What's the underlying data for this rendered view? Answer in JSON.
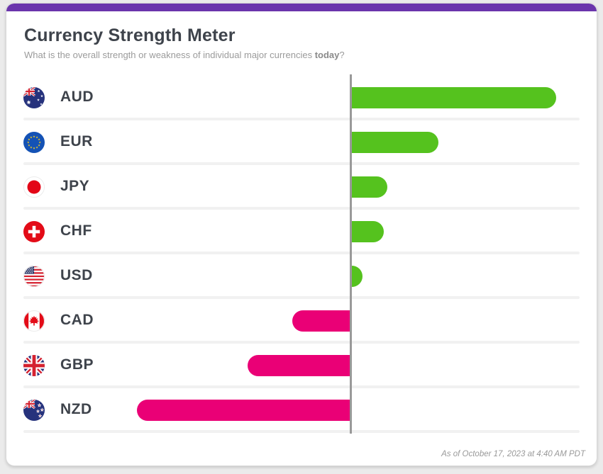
{
  "header": {
    "title": "Currency Strength Meter",
    "subtitle_text": "What is the overall strength or weakness of individual major currencies ",
    "subtitle_bold": "today",
    "subtitle_suffix": "?"
  },
  "footer": {
    "timestamp": "As of October 17, 2023 at 4:40 AM PDT"
  },
  "colors": {
    "accent": "#6a35ac",
    "positive": "#55c21e",
    "negative": "#ea0076",
    "axis": "#999999",
    "title_text": "#3e434b",
    "muted_text": "#9b9b9b",
    "divider": "#f1f1f1"
  },
  "icons": [
    "flag-aud-icon",
    "flag-eur-icon",
    "flag-jpy-icon",
    "flag-chf-icon",
    "flag-usd-icon",
    "flag-cad-icon",
    "flag-gbp-icon",
    "flag-nzd-icon"
  ],
  "chart_data": {
    "type": "bar",
    "orientation": "horizontal",
    "title": "Currency Strength Meter",
    "categories": [
      "AUD",
      "EUR",
      "JPY",
      "CHF",
      "USD",
      "CAD",
      "GBP",
      "NZD"
    ],
    "values": [
      9.6,
      4.05,
      1.65,
      1.5,
      0.5,
      -2.7,
      -4.8,
      -10.0
    ],
    "flags": [
      "aud",
      "eur",
      "jpy",
      "chf",
      "usd",
      "cad",
      "gbp",
      "nzd"
    ],
    "baseline": 0,
    "xlim": [
      -10.5,
      11.0
    ],
    "grid": false,
    "legend": false,
    "value_labels_shown": false,
    "positive_color": "#55c21e",
    "negative_color": "#ea0076"
  }
}
